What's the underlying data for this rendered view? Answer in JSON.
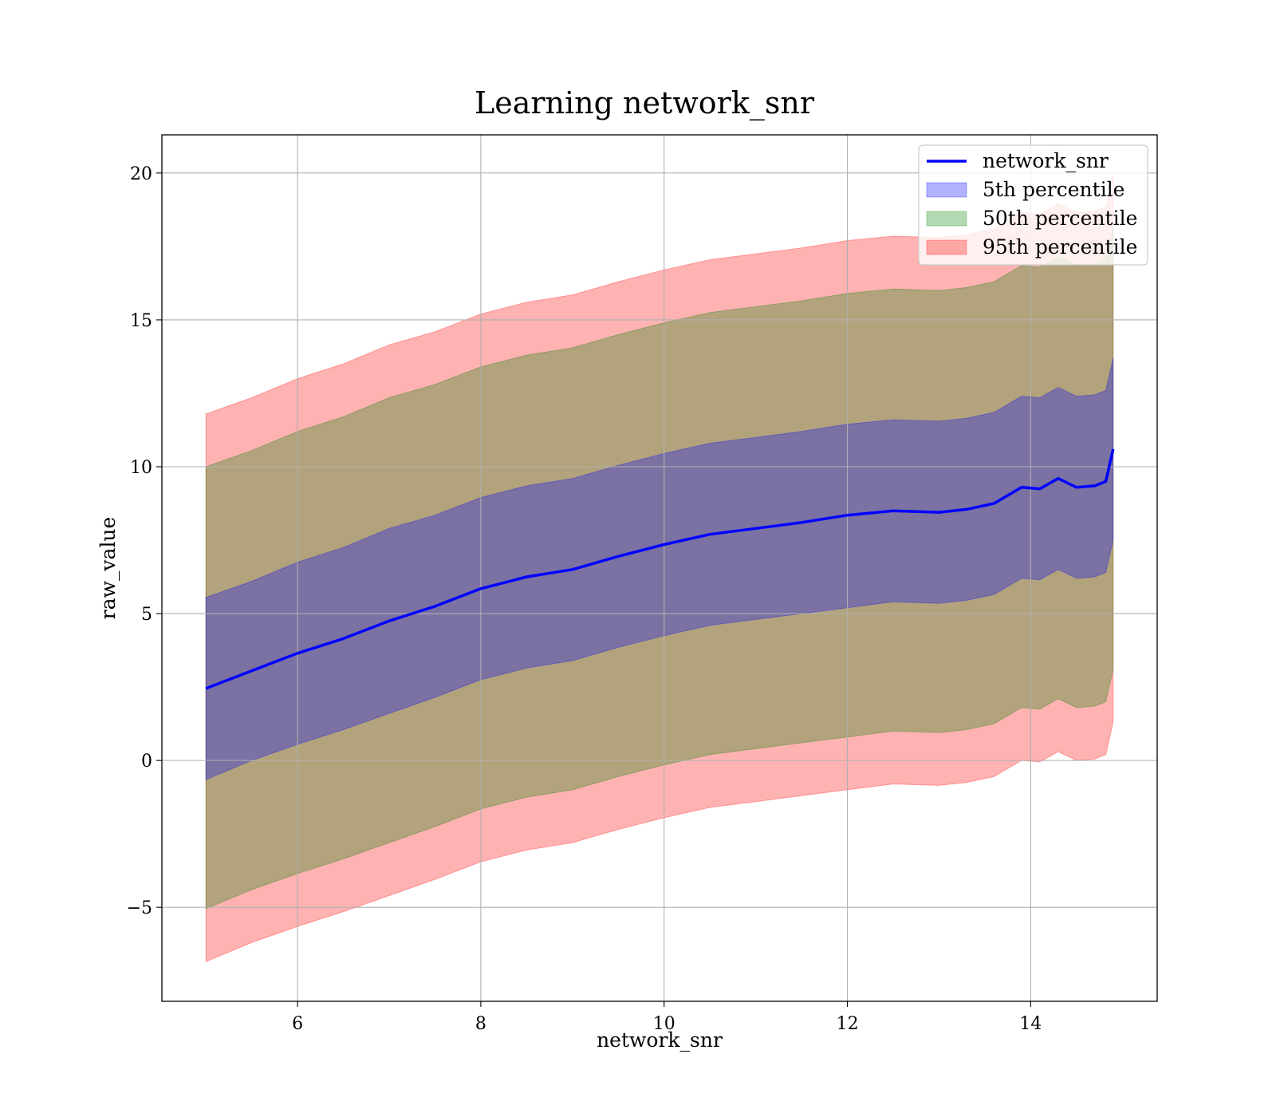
{
  "chart_data": {
    "type": "area",
    "title": "Learning network_snr",
    "xlabel": "network_snr",
    "ylabel": "raw_value",
    "xlim": [
      4.52,
      15.38
    ],
    "ylim": [
      -8.2,
      21.3
    ],
    "xticks": [
      6,
      8,
      10,
      12,
      14
    ],
    "yticks": [
      -5,
      0,
      5,
      10,
      15,
      20
    ],
    "grid": true,
    "legend_position": "top-right",
    "x": [
      5.0,
      5.5,
      6.0,
      6.5,
      7.0,
      7.5,
      8.0,
      8.5,
      9.0,
      9.5,
      10.0,
      10.5,
      11.0,
      11.5,
      12.0,
      12.5,
      13.0,
      13.3,
      13.6,
      13.9,
      14.1,
      14.3,
      14.5,
      14.7,
      14.82,
      14.9
    ],
    "series": [
      {
        "name": "network_snr",
        "kind": "line",
        "color": "#0000ff",
        "values": [
          2.45,
          3.05,
          3.65,
          4.15,
          4.75,
          5.25,
          5.85,
          6.25,
          6.5,
          6.95,
          7.35,
          7.7,
          7.9,
          8.1,
          8.35,
          8.5,
          8.45,
          8.55,
          8.75,
          9.3,
          9.25,
          9.6,
          9.3,
          9.35,
          9.5,
          10.6
        ]
      },
      {
        "name": "5th percentile",
        "kind": "band",
        "color": "#0000ff",
        "lower": [
          -0.65,
          0.0,
          0.55,
          1.05,
          1.6,
          2.15,
          2.75,
          3.15,
          3.4,
          3.85,
          4.25,
          4.6,
          4.8,
          5.0,
          5.2,
          5.4,
          5.35,
          5.45,
          5.65,
          6.2,
          6.15,
          6.5,
          6.2,
          6.25,
          6.4,
          7.5
        ],
        "upper": [
          5.55,
          6.1,
          6.75,
          7.25,
          7.9,
          8.35,
          8.95,
          9.35,
          9.6,
          10.05,
          10.45,
          10.8,
          11.0,
          11.2,
          11.45,
          11.6,
          11.55,
          11.65,
          11.85,
          12.4,
          12.35,
          12.7,
          12.4,
          12.45,
          12.6,
          13.7
        ]
      },
      {
        "name": "50th percentile",
        "kind": "band",
        "color": "#008000",
        "lower": [
          -5.05,
          -4.4,
          -3.85,
          -3.35,
          -2.8,
          -2.25,
          -1.65,
          -1.25,
          -1.0,
          -0.55,
          -0.15,
          0.2,
          0.4,
          0.6,
          0.8,
          1.0,
          0.95,
          1.05,
          1.25,
          1.8,
          1.75,
          2.1,
          1.8,
          1.85,
          2.0,
          3.1
        ],
        "upper": [
          10.0,
          10.55,
          11.2,
          11.7,
          12.35,
          12.8,
          13.4,
          13.8,
          14.05,
          14.5,
          14.9,
          15.25,
          15.45,
          15.65,
          15.9,
          16.05,
          16.0,
          16.1,
          16.3,
          16.85,
          16.8,
          17.15,
          16.85,
          16.9,
          17.05,
          18.15
        ]
      },
      {
        "name": "95th percentile",
        "kind": "band",
        "color": "#ff0000",
        "lower": [
          -6.85,
          -6.2,
          -5.65,
          -5.15,
          -4.6,
          -4.05,
          -3.45,
          -3.05,
          -2.8,
          -2.35,
          -1.95,
          -1.6,
          -1.4,
          -1.2,
          -1.0,
          -0.8,
          -0.85,
          -0.75,
          -0.55,
          0.0,
          -0.05,
          0.3,
          0.0,
          0.05,
          0.2,
          1.3
        ],
        "upper": [
          11.8,
          12.35,
          13.0,
          13.5,
          14.15,
          14.6,
          15.2,
          15.6,
          15.85,
          16.3,
          16.7,
          17.05,
          17.25,
          17.45,
          17.7,
          17.85,
          17.8,
          17.9,
          18.1,
          18.65,
          18.6,
          18.95,
          18.65,
          18.7,
          18.85,
          19.95
        ]
      }
    ]
  }
}
